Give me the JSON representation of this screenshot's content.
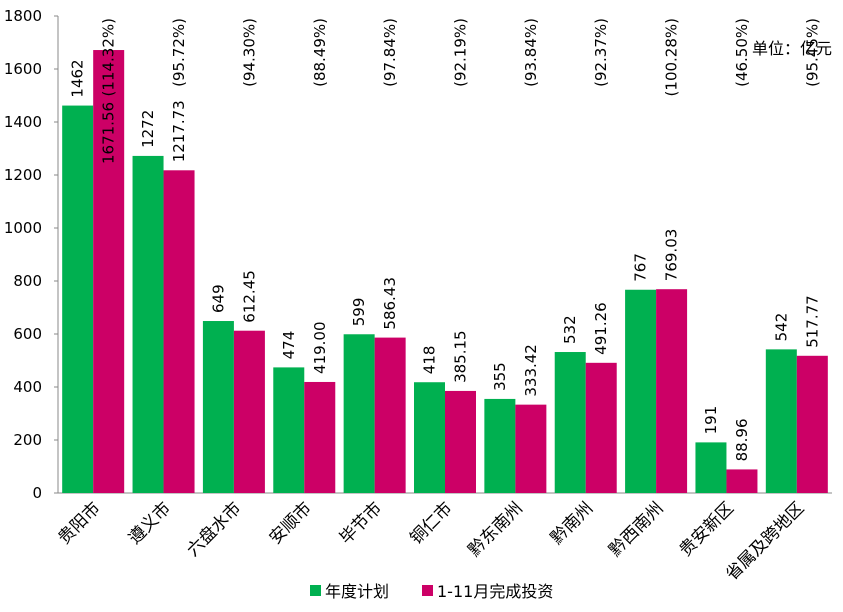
{
  "chart_data": {
    "type": "bar",
    "unit_label": "单位：亿元",
    "categories": [
      "贵阳市",
      "遵义市",
      "六盘水市",
      "安顺市",
      "毕节市",
      "铜仁市",
      "黔东南州",
      "黔南州",
      "黔西南州",
      "贵安新区",
      "省属及跨地区"
    ],
    "series": [
      {
        "name": "年度计划",
        "color": "#00b050",
        "values": [
          1462,
          1272,
          649,
          474,
          599,
          418,
          355,
          532,
          767,
          191,
          542
        ],
        "labels": [
          "1462",
          "1272",
          "649",
          "474",
          "599",
          "418",
          "355",
          "532",
          "767",
          "191",
          "542"
        ]
      },
      {
        "name": "1-11月完成投资",
        "color": "#cc0066",
        "values": [
          1671.56,
          1217.73,
          612.45,
          419.0,
          586.43,
          385.15,
          333.42,
          491.26,
          769.03,
          88.96,
          517.77
        ],
        "labels": [
          "1671.56",
          "1217.73",
          "612.45",
          "419.00",
          "586.43",
          "385.15",
          "333.42",
          "491.26",
          "769.03",
          "88.96",
          "517.77"
        ],
        "percent_labels": [
          "(114.32%)",
          "(95.72%)",
          "(94.30%)",
          "(88.49%)",
          "(97.84%)",
          "(92.19%)",
          "(93.84%)",
          "(92.37%)",
          "(100.28%)",
          "(46.50%)",
          "(95.45%)"
        ]
      }
    ],
    "ylim": [
      0,
      1800
    ],
    "yticks": [
      "0",
      "200",
      "400",
      "600",
      "800",
      "1000",
      "1200",
      "1400",
      "1600",
      "1800"
    ],
    "grid": false,
    "legend_position": "bottom"
  }
}
